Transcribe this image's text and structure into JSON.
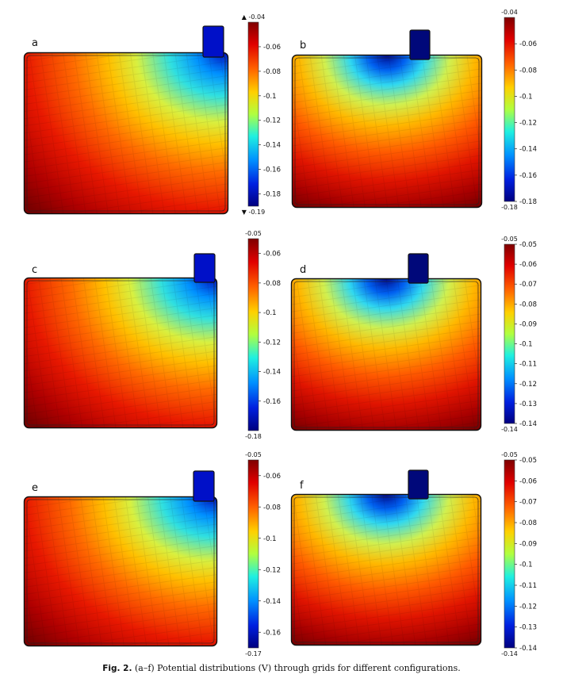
{
  "caption": {
    "label": "Fig. 2.",
    "text": "(a–f) Potential distributions (V) through grids for different configurations."
  },
  "panels": [
    {
      "id": "a",
      "tab": "right",
      "field": "corner",
      "color_range": [
        -0.19,
        -0.04
      ],
      "colorbar": {
        "top_label": "-0.04",
        "bottom_label": "-0.19",
        "top_marker": "▲",
        "bottom_marker": "▼",
        "ticks": [
          "-0.06",
          "-0.08",
          "-0.1",
          "-0.12",
          "-0.14",
          "-0.16",
          "-0.18"
        ],
        "tick_values": [
          -0.06,
          -0.08,
          -0.1,
          -0.12,
          -0.14,
          -0.16,
          -0.18
        ]
      }
    },
    {
      "id": "b",
      "tab": "center",
      "field": "center",
      "color_range": [
        -0.18,
        -0.04
      ],
      "colorbar": {
        "top_label": "-0.04",
        "bottom_label": "-0.18",
        "top_marker": "",
        "bottom_marker": "",
        "ticks": [
          "-0.06",
          "-0.08",
          "-0.1",
          "-0.12",
          "-0.14",
          "-0.16",
          "-0.18"
        ],
        "tick_values": [
          -0.06,
          -0.08,
          -0.1,
          -0.12,
          -0.14,
          -0.16,
          -0.18
        ]
      }
    },
    {
      "id": "c",
      "tab": "right",
      "field": "corner",
      "color_range": [
        -0.18,
        -0.05
      ],
      "colorbar": {
        "top_label": "-0.05",
        "bottom_label": "-0.18",
        "top_marker": "",
        "bottom_marker": "",
        "ticks": [
          "-0.06",
          "-0.08",
          "-0.1",
          "-0.12",
          "-0.14",
          "-0.16"
        ],
        "tick_values": [
          -0.06,
          -0.08,
          -0.1,
          -0.12,
          -0.14,
          -0.16
        ]
      }
    },
    {
      "id": "d",
      "tab": "center",
      "field": "center",
      "color_range": [
        -0.14,
        -0.05
      ],
      "colorbar": {
        "top_label": "-0.05",
        "bottom_label": "-0.14",
        "top_marker": "",
        "bottom_marker": "",
        "ticks": [
          "-0.05",
          "-0.06",
          "-0.07",
          "-0.08",
          "-0.09",
          "-0.1",
          "-0.11",
          "-0.12",
          "-0.13",
          "-0.14"
        ],
        "tick_values": [
          -0.05,
          -0.06,
          -0.07,
          -0.08,
          -0.09,
          -0.1,
          -0.11,
          -0.12,
          -0.13,
          -0.14
        ]
      }
    },
    {
      "id": "e",
      "tab": "right",
      "field": "corner",
      "color_range": [
        -0.17,
        -0.05
      ],
      "colorbar": {
        "top_label": "-0.05",
        "bottom_label": "-0.17",
        "top_marker": "",
        "bottom_marker": "",
        "ticks": [
          "-0.06",
          "-0.08",
          "-0.1",
          "-0.12",
          "-0.14",
          "-0.16"
        ],
        "tick_values": [
          -0.06,
          -0.08,
          -0.1,
          -0.12,
          -0.14,
          -0.16
        ]
      }
    },
    {
      "id": "f",
      "tab": "center",
      "field": "center",
      "color_range": [
        -0.14,
        -0.05
      ],
      "colorbar": {
        "top_label": "-0.05",
        "bottom_label": "-0.14",
        "top_marker": "",
        "bottom_marker": "",
        "ticks": [
          "-0.05",
          "-0.06",
          "-0.07",
          "-0.08",
          "-0.09",
          "-0.1",
          "-0.11",
          "-0.12",
          "-0.13",
          "-0.14"
        ],
        "tick_values": [
          -0.05,
          -0.06,
          -0.07,
          -0.08,
          -0.09,
          -0.1,
          -0.11,
          -0.12,
          -0.13,
          -0.14
        ]
      }
    }
  ]
}
